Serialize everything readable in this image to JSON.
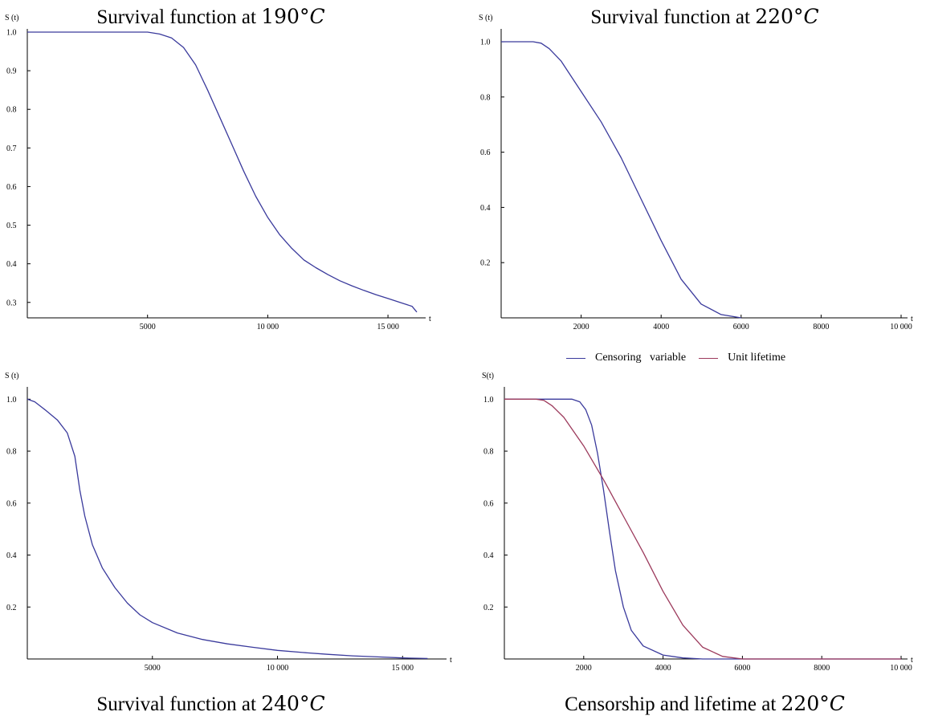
{
  "captions": [
    {
      "text": "Survival function at ",
      "value": "190°",
      "unit": "C"
    },
    {
      "text": "Survival function at ",
      "value": "220°",
      "unit": "C"
    },
    {
      "text": "Survival function at ",
      "value": "240°",
      "unit": "C"
    },
    {
      "text": "Censorship and lifetime at ",
      "value": "220°",
      "unit": "C"
    }
  ],
  "legend": [
    {
      "label": "Censoring   variable",
      "color": "#3a3a9c"
    },
    {
      "label": "Unit lifetime",
      "color": "#9c3a5c"
    }
  ],
  "chart_data": [
    {
      "type": "line",
      "xlabel": "t",
      "ylabel": "S (t)",
      "xlim": [
        0,
        16300
      ],
      "ylim": [
        0.26,
        1.0
      ],
      "xticks": [
        5000,
        10000,
        15000
      ],
      "xtick_labels": [
        "5000",
        "10 000",
        "15 000"
      ],
      "yticks": [
        0.3,
        0.4,
        0.5,
        0.6,
        0.7,
        0.8,
        0.9,
        1.0
      ],
      "ytick_labels": [
        "0.3",
        "0.4",
        "0.5",
        "0.6",
        "0.7",
        "0.8",
        "0.9",
        "1.0"
      ],
      "series": [
        {
          "color": "#3a3a9c",
          "x": [
            0,
            5000,
            5500,
            6000,
            6500,
            7000,
            7500,
            8000,
            8500,
            9000,
            9500,
            10000,
            10500,
            11000,
            11500,
            12000,
            12500,
            13000,
            13500,
            14000,
            14500,
            15000,
            15500,
            16000,
            16200
          ],
          "y": [
            1.0,
            1.0,
            0.995,
            0.985,
            0.96,
            0.915,
            0.85,
            0.78,
            0.71,
            0.64,
            0.575,
            0.52,
            0.475,
            0.44,
            0.41,
            0.39,
            0.372,
            0.356,
            0.343,
            0.331,
            0.32,
            0.31,
            0.3,
            0.29,
            0.275
          ]
        }
      ]
    },
    {
      "type": "line",
      "xlabel": "t",
      "ylabel": "S (t)",
      "xlim": [
        0,
        10000
      ],
      "ylim": [
        0,
        1.035
      ],
      "xticks": [
        2000,
        4000,
        6000,
        8000,
        10000
      ],
      "xtick_labels": [
        "2000",
        "4000",
        "6000",
        "8000",
        "10 000"
      ],
      "yticks": [
        0.2,
        0.4,
        0.6,
        0.8,
        1.0
      ],
      "ytick_labels": [
        "0.2",
        "0.4",
        "0.6",
        "0.8",
        "1.0"
      ],
      "series": [
        {
          "color": "#3a3a9c",
          "x": [
            0,
            800,
            1000,
            1200,
            1500,
            2000,
            2500,
            3000,
            3500,
            4000,
            4500,
            5000,
            5500,
            6000
          ],
          "y": [
            1.0,
            1.0,
            0.995,
            0.975,
            0.93,
            0.82,
            0.71,
            0.58,
            0.43,
            0.28,
            0.14,
            0.05,
            0.012,
            0.0
          ]
        }
      ]
    },
    {
      "type": "line",
      "xlabel": "t",
      "ylabel": "S (t)",
      "xlim": [
        0,
        16500
      ],
      "ylim": [
        0,
        1.035
      ],
      "xticks": [
        5000,
        10000,
        15000
      ],
      "xtick_labels": [
        "5000",
        "10 000",
        "15 000"
      ],
      "yticks": [
        0.2,
        0.4,
        0.6,
        0.8,
        1.0
      ],
      "ytick_labels": [
        "0.2",
        "0.4",
        "0.6",
        "0.8",
        "1.0"
      ],
      "series": [
        {
          "color": "#3a3a9c",
          "x": [
            0,
            300,
            700,
            1200,
            1600,
            1900,
            2100,
            2300,
            2600,
            3000,
            3500,
            4000,
            4500,
            5000,
            6000,
            7000,
            8000,
            9000,
            10000,
            11000,
            12000,
            13000,
            14000,
            15000,
            16000
          ],
          "y": [
            1.0,
            0.99,
            0.96,
            0.92,
            0.87,
            0.78,
            0.65,
            0.55,
            0.44,
            0.35,
            0.275,
            0.215,
            0.17,
            0.14,
            0.1,
            0.075,
            0.058,
            0.045,
            0.033,
            0.025,
            0.018,
            0.012,
            0.008,
            0.004,
            0.002
          ]
        }
      ]
    },
    {
      "type": "line",
      "xlabel": "t",
      "ylabel": "S(t)",
      "xlim": [
        0,
        10000
      ],
      "ylim": [
        0,
        1.035
      ],
      "xticks": [
        2000,
        4000,
        6000,
        8000,
        10000
      ],
      "xtick_labels": [
        "2000",
        "4000",
        "6000",
        "8000",
        "10 000"
      ],
      "yticks": [
        0.2,
        0.4,
        0.6,
        0.8,
        1.0
      ],
      "ytick_labels": [
        "0.2",
        "0.4",
        "0.6",
        "0.8",
        "1.0"
      ],
      "series": [
        {
          "name": "Censoring   variable",
          "color": "#3a3a9c",
          "x": [
            0,
            1700,
            1900,
            2050,
            2200,
            2350,
            2500,
            2650,
            2800,
            3000,
            3200,
            3500,
            4000,
            4500,
            5000,
            10000
          ],
          "y": [
            1.0,
            1.0,
            0.99,
            0.96,
            0.9,
            0.79,
            0.65,
            0.49,
            0.34,
            0.2,
            0.11,
            0.05,
            0.015,
            0.004,
            0.0,
            0.0
          ]
        },
        {
          "name": "Unit lifetime",
          "color": "#9c3a5c",
          "x": [
            0,
            800,
            1000,
            1200,
            1500,
            2000,
            2500,
            3000,
            3500,
            4000,
            4500,
            5000,
            5500,
            6000,
            10000
          ],
          "y": [
            1.0,
            1.0,
            0.995,
            0.975,
            0.93,
            0.82,
            0.69,
            0.55,
            0.41,
            0.26,
            0.13,
            0.045,
            0.01,
            0.0,
            0.0
          ]
        }
      ]
    }
  ]
}
